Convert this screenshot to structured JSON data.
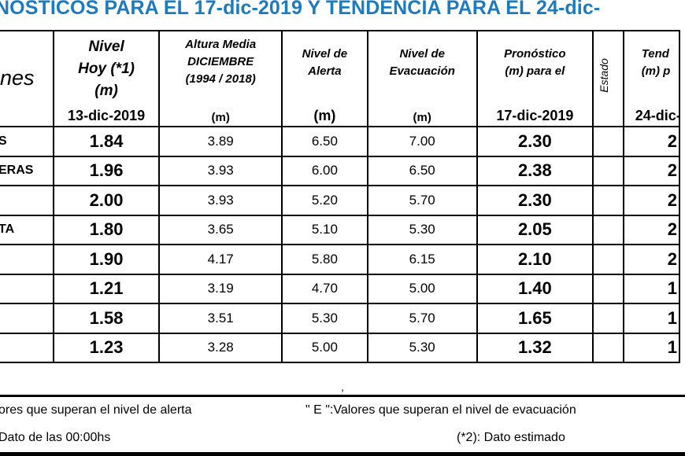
{
  "title": "NOSTICOS PARA EL 17-dic-2019 Y TENDENCIA PARA EL 24-dic-",
  "headers": {
    "name": "nes",
    "nivel_hoy": [
      "Nivel",
      "Hoy (*1)",
      "(m)"
    ],
    "nivel_hoy_date": "13-dic-2019",
    "altura_media": [
      "Altura Media",
      "DICIEMBRE",
      "(1994 / 2018)"
    ],
    "altura_media_unit": "(m)",
    "alerta": [
      "Nivel de",
      "Alerta"
    ],
    "alerta_unit": "(m)",
    "evacuacion": [
      "Nivel de",
      "Evacuación"
    ],
    "evacuacion_unit": "(m)",
    "pronostico": [
      "Pronóstico",
      "(m) para el"
    ],
    "pronostico_date": "17-dic-2019",
    "estado": "Estado",
    "tendencia": [
      "Tend",
      "(m) p"
    ],
    "tendencia_date": "24-dic-"
  },
  "rows": [
    {
      "name": "S",
      "hoy": "1.84",
      "media": "3.89",
      "alerta": "6.50",
      "evac": "7.00",
      "pron": "2.30",
      "tend": "2"
    },
    {
      "name": "ERAS",
      "hoy": "1.96",
      "media": "3.93",
      "alerta": "6.00",
      "evac": "6.50",
      "pron": "2.38",
      "tend": "2"
    },
    {
      "name": "",
      "hoy": "2.00",
      "media": "3.93",
      "alerta": "5.20",
      "evac": "5.70",
      "pron": "2.30",
      "tend": "2"
    },
    {
      "name": "TA",
      "hoy": "1.80",
      "media": "3.65",
      "alerta": "5.10",
      "evac": "5.30",
      "pron": "2.05",
      "tend": "2"
    },
    {
      "name": "",
      "hoy": "1.90",
      "media": "4.17",
      "alerta": "5.80",
      "evac": "6.15",
      "pron": "2.10",
      "tend": "2"
    },
    {
      "name": "",
      "hoy": "1.21",
      "media": "3.19",
      "alerta": "4.70",
      "evac": "5.00",
      "pron": "1.40",
      "tend": "1"
    },
    {
      "name": "",
      "hoy": "1.58",
      "media": "3.51",
      "alerta": "5.30",
      "evac": "5.70",
      "pron": "1.65",
      "tend": "1"
    },
    {
      "name": "",
      "hoy": "1.23",
      "media": "3.28",
      "alerta": "5.00",
      "evac": "5.30",
      "pron": "1.32",
      "tend": "1"
    }
  ],
  "stray_mark": ",",
  "footnotes": {
    "alerta": "ores que superan el nivel de alerta",
    "evacuacion": "\" E \":Valores que superan el nivel de evacuación",
    "dato": "Dato de las 00:00hs",
    "estimado": "(*2): Dato estimado"
  }
}
